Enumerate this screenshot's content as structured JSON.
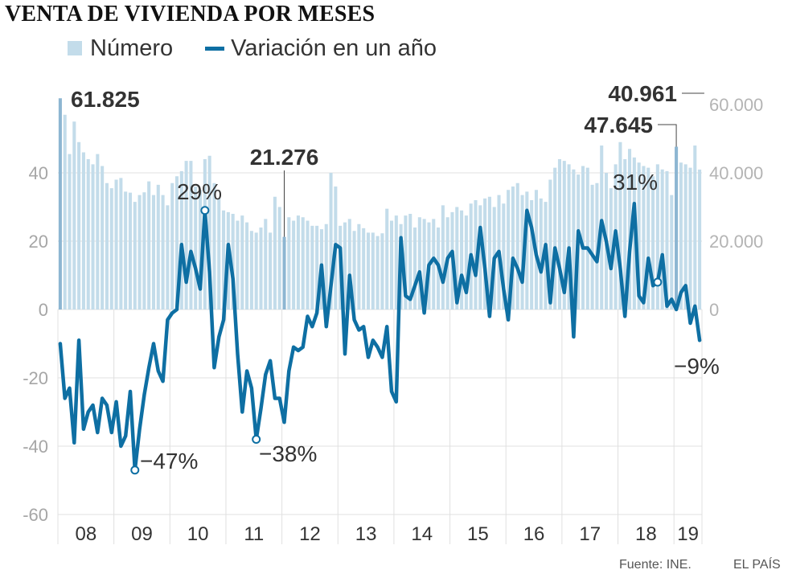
{
  "title": "VENTA DE VIVIENDA POR MESES",
  "legend": {
    "bars_label": "Número",
    "line_label": "Variación en un año"
  },
  "footer": {
    "source": "Fuente: INE.",
    "brand": "EL PAÍS"
  },
  "colors": {
    "bar": "#c3dcea",
    "bar_highlight": "#8db6d2",
    "line": "#0e6fa3",
    "grid": "#e0e0e0",
    "axis_text": "#a6a6a6"
  },
  "chart_data": {
    "type": "bar",
    "x_labels": [
      "08",
      "09",
      "10",
      "11",
      "12",
      "13",
      "14",
      "15",
      "16",
      "17",
      "18",
      "19"
    ],
    "left_axis": {
      "range": [
        -60,
        60
      ],
      "ticks": [
        "-60",
        "-40",
        "-20",
        "0",
        "20",
        "40"
      ]
    },
    "right_axis": {
      "range": [
        0,
        60000
      ],
      "ticks": [
        "0",
        "20.000",
        "40.000",
        "60.000"
      ]
    },
    "series": [
      {
        "name": "Número",
        "type": "bar",
        "axis": "right",
        "values": [
          61825,
          57000,
          45500,
          55000,
          49000,
          46000,
          44000,
          42500,
          45500,
          42000,
          37000,
          35500,
          38000,
          38500,
          34500,
          34200,
          31500,
          33500,
          34300,
          37500,
          33500,
          36500,
          33500,
          30500,
          37000,
          39000,
          40500,
          43500,
          43500,
          36000,
          35000,
          44000,
          45000,
          37000,
          32500,
          29000,
          28500,
          28000,
          26000,
          27500,
          25500,
          23000,
          22500,
          24000,
          26500,
          22500,
          33000,
          30000,
          21276,
          27000,
          26000,
          27500,
          27000,
          26000,
          24500,
          24500,
          23500,
          25000,
          40000,
          36000,
          24500,
          25500,
          26500,
          23000,
          25000,
          23800,
          22500,
          22500,
          21500,
          22300,
          29500,
          26000,
          27500,
          25000,
          27500,
          28000,
          24000,
          27000,
          26500,
          25500,
          26500,
          24000,
          30500,
          27000,
          28500,
          30000,
          29000,
          27500,
          31000,
          32000,
          30500,
          32500,
          33000,
          30000,
          33500,
          31000,
          35000,
          36000,
          37000,
          33500,
          34500,
          32000,
          35000,
          32500,
          31500,
          38000,
          41500,
          44000,
          43500,
          42500,
          41000,
          39500,
          42000,
          41500,
          36500,
          37000,
          48000,
          40000,
          35500,
          42500,
          49000,
          44000,
          47000,
          44500,
          43000,
          42000,
          41500,
          39000,
          42500,
          41000,
          40500,
          33500,
          47645,
          43000,
          42500,
          41500,
          48000,
          40961
        ]
      },
      {
        "name": "Variación en un año",
        "type": "line",
        "axis": "left",
        "values": [
          -10,
          -26,
          -23,
          -39,
          -9,
          -35,
          -30,
          -28,
          -36,
          -26,
          -28,
          -36,
          -27,
          -40,
          -37,
          -24,
          -47,
          -35,
          -25,
          -17,
          -10,
          -18,
          -21,
          -3,
          -1,
          0,
          19,
          8,
          17,
          12,
          6,
          29,
          11,
          -17,
          -8,
          -3,
          19,
          9,
          -13,
          -30,
          -18,
          -23,
          -38,
          -29,
          -19,
          -15,
          -26,
          -26,
          -33,
          -18,
          -11,
          -12,
          -11,
          -2,
          -5,
          -1,
          13,
          -5,
          7,
          19,
          18,
          -13,
          10,
          -3,
          -6,
          -5,
          -14,
          -9,
          -11,
          -14,
          -5,
          -24,
          -27,
          21,
          4,
          3,
          7,
          11,
          -1,
          13,
          15,
          13,
          8,
          15,
          17,
          2,
          10,
          5,
          16,
          10,
          24,
          12,
          -2,
          15,
          17,
          6,
          -3,
          15,
          12,
          8,
          29,
          24,
          16,
          11,
          19,
          2,
          18,
          12,
          5,
          18,
          -8,
          23,
          18,
          18,
          16,
          14,
          26,
          20,
          12,
          23,
          12,
          -2,
          17,
          31,
          4,
          2,
          15,
          7,
          8,
          16,
          1,
          3,
          0,
          5,
          7,
          -4,
          1,
          -9
        ]
      }
    ],
    "annotations": {
      "bars": [
        "61.825",
        "21.276",
        "47.645",
        "40.961"
      ],
      "line": [
        "29%",
        "31%",
        "−47%",
        "−38%",
        "−9%"
      ]
    }
  }
}
